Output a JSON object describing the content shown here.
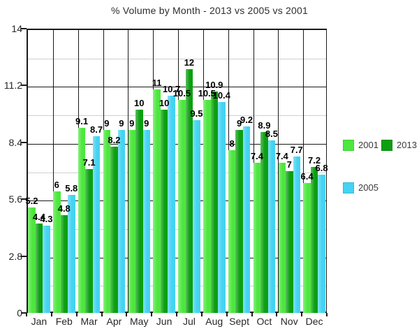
{
  "chart_data": {
    "type": "bar",
    "title": "% Volume by Month - 2013 vs 2005 vs 2001",
    "categories": [
      "Jan",
      "Feb",
      "Mar",
      "Apr",
      "May",
      "Jun",
      "Jul",
      "Aug",
      "Sept",
      "Oct",
      "Nov",
      "Dec"
    ],
    "series": [
      {
        "name": "2001",
        "color": "#4DE73E",
        "values": [
          5.2,
          6,
          9.1,
          9,
          9,
          11,
          10.5,
          10.5,
          8,
          7.4,
          7.4,
          6.4
        ]
      },
      {
        "name": "2013",
        "color": "#0C9F11",
        "values": [
          4.4,
          4.8,
          7.1,
          8.2,
          10,
          10,
          12,
          10.9,
          9,
          8.9,
          7,
          7.2
        ]
      },
      {
        "name": "2005",
        "color": "#44D3F2",
        "values": [
          4.3,
          5.8,
          8.7,
          9,
          9,
          10.7,
          9.5,
          10.4,
          9.2,
          8.5,
          7.7,
          6.8
        ]
      }
    ],
    "ylabel": "",
    "xlabel": "",
    "ylim": [
      0,
      14
    ],
    "yticks": [
      0,
      2.8,
      5.6,
      8.4,
      11.2,
      14
    ],
    "ytick_labels": [
      "0",
      "2.8",
      "5.6",
      "8.4",
      "11.2",
      "14"
    ],
    "minor_gridlines": [
      1.4,
      4.2,
      7,
      9.8,
      12.6
    ],
    "grid": true,
    "data_labels": true,
    "legend_position": "right",
    "legend_rows": [
      [
        "2001",
        "2013"
      ],
      [
        "2005"
      ]
    ]
  }
}
